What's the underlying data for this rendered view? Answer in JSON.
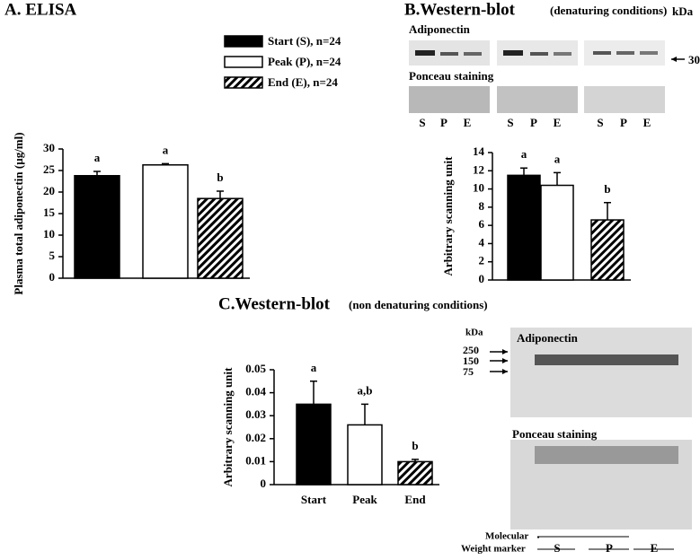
{
  "chart_data": [
    {
      "type": "bar",
      "title": "A. ELISA",
      "ylabel": "Plasma total adiponectin (µg/ml)",
      "categories": [
        null,
        null,
        null
      ],
      "values": [
        23.8,
        26.3,
        18.5
      ],
      "errors": [
        1.0,
        0.3,
        1.7
      ],
      "annotations": [
        "a",
        "a",
        "b"
      ],
      "colors": [
        "#000000",
        "#ffffff",
        "hatch"
      ],
      "legend": [
        "Start (S), n=24",
        "Peak (P), n=24",
        "End (E), n=24"
      ],
      "ylim": [
        0,
        30
      ],
      "yticks": [
        0,
        5,
        10,
        15,
        20,
        25,
        30
      ]
    },
    {
      "type": "bar",
      "title": "B.Western-blot",
      "subtitle": "(denaturing conditions)",
      "ylabel": "Arbitrary scanning unit",
      "categories": [
        null,
        null,
        null
      ],
      "values": [
        11.5,
        10.4,
        6.6
      ],
      "errors": [
        0.8,
        1.4,
        1.9
      ],
      "annotations": [
        "a",
        "a",
        "b"
      ],
      "colors": [
        "#000000",
        "#ffffff",
        "hatch"
      ],
      "ylim": [
        0,
        14
      ],
      "yticks": [
        0,
        2,
        4,
        6,
        8,
        10,
        12,
        14
      ]
    },
    {
      "type": "bar",
      "title": "C.Western-blot",
      "subtitle": "(non denaturing conditions)",
      "ylabel": "Arbitrary scanning unit",
      "categories": [
        "Start",
        "Peak",
        "End"
      ],
      "values": [
        0.035,
        0.026,
        0.01
      ],
      "errors": [
        0.01,
        0.009,
        0.001
      ],
      "annotations": [
        "a",
        "a,b",
        "b"
      ],
      "colors": [
        "#000000",
        "#ffffff",
        "hatch"
      ],
      "ylim": [
        0,
        0.05
      ],
      "yticks": [
        0,
        0.01,
        0.02,
        0.03,
        0.04,
        0.05
      ]
    }
  ],
  "blots": {
    "b_unit": "kDa",
    "b_protein": "Adiponectin",
    "b_size": "30",
    "b_stain": "Ponceau staining",
    "b_lanes": [
      "S",
      "P",
      "E",
      "S",
      "P",
      "E",
      "S",
      "P",
      "E"
    ],
    "c_protein": "Adiponectin",
    "c_unit": "kDa",
    "c_sizes": [
      "250",
      "150",
      "75"
    ],
    "c_stain": "Ponceau staining",
    "c_marker": [
      "Molecular",
      "Weight marker"
    ],
    "c_lanes": [
      "S",
      "P",
      "E"
    ]
  }
}
